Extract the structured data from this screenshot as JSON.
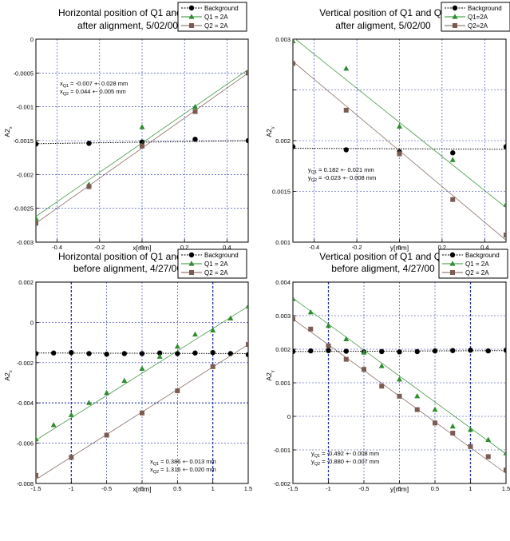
{
  "chart_data": [
    {
      "type": "scatter",
      "title_lines": [
        "Horizontal position of Q1 and Q2",
        "after alignment, 5/02/00"
      ],
      "xlabel": "x[mm]",
      "ylabel_main": "A2",
      "ylabel_sub": "x",
      "xlim": [
        -0.5,
        0.5
      ],
      "ylim": [
        -0.003,
        0
      ],
      "xticks": [
        -0.4,
        -0.2,
        0,
        0.2,
        0.4
      ],
      "yticks": [
        0,
        -0.0005,
        -0.001,
        -0.0015,
        -0.002,
        -0.0025,
        -0.003
      ],
      "xtick_labels": [
        "-0.4",
        "-0.2",
        "0",
        "0.2",
        "0.4"
      ],
      "ytick_labels": [
        "0",
        "-0.0005",
        "-0.001",
        "-0.0015",
        "-0.002",
        "-0.0025",
        "-0.003"
      ],
      "xtick_fracs": [
        0.1,
        0.3,
        0.5,
        0.7,
        0.9
      ],
      "ytick_fracs": [
        0,
        0.1667,
        0.3333,
        0.5,
        0.6667,
        0.8333,
        1
      ],
      "grid": true,
      "legend_position": "top-right",
      "series": [
        {
          "name": "Background",
          "marker": "circle",
          "color": "#000000",
          "x": [
            -0.5,
            -0.25,
            0,
            0.25,
            0.5
          ],
          "y": [
            -0.00155,
            -0.00154,
            -0.00152,
            -0.00148,
            -0.0015
          ],
          "fit": [
            [
              -0.5,
              -0.001545
            ],
            [
              0.5,
              -0.0015
            ]
          ],
          "fit_style": "dotted"
        },
        {
          "name": "Q1 = 2A",
          "marker": "triangle",
          "color": "#2e8b2e",
          "x": [
            -0.5,
            -0.25,
            0,
            0.25,
            0.5
          ],
          "y": [
            -0.00265,
            -0.00215,
            -0.0013,
            -0.001,
            -0.00048
          ],
          "fit": [
            [
              -0.5,
              -0.00262
            ],
            [
              0.5,
              -0.00045
            ]
          ],
          "fit_style": "solid"
        },
        {
          "name": "Q2 = 2A",
          "marker": "square",
          "color": "#7a5c52",
          "x": [
            -0.5,
            -0.25,
            0,
            0.25,
            0.5
          ],
          "y": [
            -0.00272,
            -0.00218,
            -0.00158,
            -0.00107,
            -0.0005
          ],
          "fit": [
            [
              -0.5,
              -0.00272
            ],
            [
              0.5,
              -0.0005
            ]
          ],
          "fit_style": "solid"
        }
      ],
      "annotations": [
        {
          "var": "x",
          "sub": "Q1",
          "text": " = -0.007 +- 0.028 mm"
        },
        {
          "var": "x",
          "sub": "Q2",
          "text": " = 0.044 +- 0.005 mm"
        }
      ]
    },
    {
      "type": "scatter",
      "title_lines": [
        "Vertical position of Q1 and Q2",
        "after aligment, 5/02/00"
      ],
      "xlabel": "y[mm]",
      "ylabel_main": "A2",
      "ylabel_sub": "y",
      "xlim": [
        -0.5,
        0.5
      ],
      "ylim": [
        0.001,
        0.003
      ],
      "xticks": [
        -0.4,
        -0.2,
        0,
        0.2,
        0.4
      ],
      "yticks": [
        0.003,
        0.0025,
        0.002,
        0.0015,
        0.001
      ],
      "xtick_labels": [
        "-0.4",
        "-0.2",
        "0",
        "0.2",
        "0.4"
      ],
      "ytick_labels": [
        "0.003",
        "",
        "0.002",
        "0.0015",
        "0.001"
      ],
      "xtick_fracs": [
        0.1,
        0.3,
        0.5,
        0.7,
        0.9
      ],
      "ytick_fracs": [
        0,
        0.25,
        0.5,
        0.75,
        1
      ],
      "grid": true,
      "legend_position": "top-right",
      "series": [
        {
          "name": "Background",
          "marker": "circle",
          "color": "#000000",
          "x": [
            -0.5,
            -0.25,
            0,
            0.25,
            0.5
          ],
          "y": [
            0.00194,
            0.00191,
            0.00189,
            0.00188,
            0.00194
          ],
          "fit": [
            [
              -0.5,
              0.001925
            ],
            [
              0.5,
              0.001915
            ]
          ],
          "fit_style": "dotted"
        },
        {
          "name": "Q1=2A",
          "marker": "triangle",
          "color": "#2e8b2e",
          "x": [
            -0.5,
            -0.25,
            0,
            0.25,
            0.5
          ],
          "y": [
            0.00298,
            0.00271,
            0.00214,
            0.00181,
            0.00137
          ],
          "fit": [
            [
              -0.5,
              0.00302
            ],
            [
              0.5,
              0.00134
            ]
          ],
          "fit_style": "solid"
        },
        {
          "name": "Q2=2A",
          "marker": "square",
          "color": "#7a5c52",
          "x": [
            -0.5,
            -0.25,
            0,
            0.25,
            0.5
          ],
          "y": [
            0.00276,
            0.0023,
            0.00187,
            0.00142,
            0.00107
          ],
          "fit": [
            [
              -0.5,
              0.00278
            ],
            [
              0.5,
              0.00102
            ]
          ],
          "fit_style": "solid"
        }
      ],
      "annotations": [
        {
          "var": "y",
          "sub": "Q1",
          "text": " = 0.182 +- 0.021 mm"
        },
        {
          "var": "y",
          "sub": "Q2",
          "text": " = -0.023 +- 0.008 mm"
        }
      ]
    },
    {
      "type": "scatter",
      "title_lines": [
        "Horizontal position of Q1 and Q2",
        "before alignment, 4/27/00"
      ],
      "xlabel": "x[mm]",
      "ylabel_main": "A2",
      "ylabel_sub": "x",
      "xlim": [
        -1.5,
        1.5
      ],
      "ylim": [
        -0.008,
        0.002
      ],
      "xticks": [
        -1.5,
        -1,
        -0.5,
        0,
        0.5,
        1,
        1.5
      ],
      "yticks": [
        0.002,
        0,
        -0.002,
        -0.004,
        -0.006,
        -0.008
      ],
      "xtick_labels": [
        "-1.5",
        "-1",
        "-0.5",
        "0",
        "0.5",
        "1",
        "1.5"
      ],
      "ytick_labels": [
        "0.002",
        "0",
        "-0.002",
        "-0.004",
        "-0.006",
        "-0.008"
      ],
      "xtick_fracs": [
        0,
        0.1667,
        0.3333,
        0.5,
        0.6667,
        0.8333,
        1
      ],
      "ytick_fracs": [
        0,
        0.2,
        0.4,
        0.6,
        0.8,
        1
      ],
      "grid": true,
      "legend_position": "top-right",
      "series": [
        {
          "name": "Background",
          "marker": "circle",
          "color": "#000000",
          "x": [
            -1.5,
            -1.25,
            -1,
            -0.75,
            -0.5,
            -0.25,
            0,
            0.25,
            0.5,
            0.75,
            1,
            1.25,
            1.5
          ],
          "y": [
            -0.00155,
            -0.00152,
            -0.0015,
            -0.00155,
            -0.00158,
            -0.00155,
            -0.00155,
            -0.00152,
            -0.00155,
            -0.00152,
            -0.0015,
            -0.00155,
            -0.0016
          ],
          "fit": [
            [
              -1.5,
              -0.00152
            ],
            [
              1.5,
              -0.00155
            ]
          ],
          "fit_style": "dotted"
        },
        {
          "name": "Q1 = 2A",
          "marker": "triangle",
          "color": "#2e8b2e",
          "x": [
            -1.5,
            -1.25,
            -1,
            -0.75,
            -0.5,
            -0.25,
            0,
            0.25,
            0.5,
            0.75,
            1,
            1.25,
            1.5
          ],
          "y": [
            -0.0058,
            -0.0051,
            -0.0046,
            -0.004,
            -0.0035,
            -0.0029,
            -0.0023,
            -0.0017,
            -0.0012,
            -0.0006,
            -0.0004,
            0.0002,
            0.0008
          ],
          "fit": [
            [
              -1.5,
              -0.00585
            ],
            [
              1.5,
              0.0008
            ]
          ],
          "fit_style": "solid"
        },
        {
          "name": "Q2 = 2A",
          "marker": "square",
          "color": "#7a5c52",
          "x": [
            -1.5,
            -1,
            -0.5,
            0,
            0.5,
            1,
            1.5
          ],
          "y": [
            -0.0076,
            -0.0067,
            -0.0056,
            -0.0045,
            -0.0034,
            -0.0022,
            -0.0011
          ],
          "fit": [
            [
              -1.5,
              -0.0078
            ],
            [
              1.5,
              -0.0011
            ]
          ],
          "fit_style": "solid"
        }
      ],
      "annotations": [
        {
          "var": "x",
          "sub": "Q1",
          "text": " = 0.386 +- 0.013 mm"
        },
        {
          "var": "x",
          "sub": "Q2",
          "text": " = 1.316 +- 0.020 mm"
        }
      ]
    },
    {
      "type": "scatter",
      "title_lines": [
        "Vertical position of Q1 and Q2",
        "before aligment, 4/27/00"
      ],
      "xlabel": "y[mm]",
      "ylabel_main": "A2",
      "ylabel_sub": "y",
      "xlim": [
        -1.5,
        1.5
      ],
      "ylim": [
        -0.002,
        0.004
      ],
      "xticks": [
        -1.5,
        -1,
        -0.5,
        0,
        0.5,
        1,
        1.5
      ],
      "yticks": [
        0.004,
        0.003,
        0.002,
        0.001,
        0,
        -0.001,
        -0.002
      ],
      "xtick_labels": [
        "-1.5",
        "-1",
        "-0.5",
        "0",
        "0.5",
        "1",
        "1.5"
      ],
      "ytick_labels": [
        "0.004",
        "0.003",
        "0.002",
        "0.001",
        "0",
        "-0.001",
        "-0.002"
      ],
      "xtick_fracs": [
        0,
        0.1667,
        0.3333,
        0.5,
        0.6667,
        0.8333,
        1
      ],
      "ytick_fracs": [
        0,
        0.1667,
        0.3333,
        0.5,
        0.6667,
        0.8333,
        1
      ],
      "grid": true,
      "legend_position": "top-right",
      "series": [
        {
          "name": "Background",
          "marker": "circle",
          "color": "#000000",
          "x": [
            -1.5,
            -1.25,
            -1,
            -0.75,
            -0.5,
            -0.25,
            0,
            0.25,
            0.5,
            0.75,
            1,
            1.25,
            1.5
          ],
          "y": [
            0.00193,
            0.00195,
            0.00196,
            0.00194,
            0.00192,
            0.00193,
            0.00192,
            0.00193,
            0.00195,
            0.00196,
            0.00197,
            0.00195,
            0.00197
          ],
          "fit": [
            [
              -1.5,
              0.00193
            ],
            [
              1.5,
              0.00196
            ]
          ],
          "fit_style": "dotted"
        },
        {
          "name": "Q1 = 2A",
          "marker": "triangle",
          "color": "#2e8b2e",
          "x": [
            -1.5,
            -1.25,
            -1,
            -0.75,
            -0.5,
            -0.25,
            0,
            0.25,
            0.5,
            0.75,
            1,
            1.25,
            1.5
          ],
          "y": [
            0.0035,
            0.0031,
            0.0027,
            0.0023,
            0.0019,
            0.0015,
            0.0011,
            0.0006,
            0.0002,
            -0.0003,
            -0.0004,
            -0.0007,
            -0.0011
          ],
          "fit": [
            [
              -1.5,
              0.00352
            ],
            [
              1.5,
              -0.00112
            ]
          ],
          "fit_style": "solid"
        },
        {
          "name": "Q2 = 2A",
          "marker": "square",
          "color": "#7a5c52",
          "x": [
            -1.5,
            -1.25,
            -1,
            -0.75,
            -0.5,
            -0.25,
            0,
            0.25,
            0.5,
            0.75,
            1,
            1.25,
            1.5
          ],
          "y": [
            0.0029,
            0.0026,
            0.0021,
            0.0017,
            0.0014,
            0.0009,
            0.0006,
            0.0002,
            -0.0002,
            -0.0005,
            -0.0009,
            -0.0012,
            -0.0016
          ],
          "fit": [
            [
              -1.5,
              0.0029
            ],
            [
              1.5,
              -0.0017
            ]
          ],
          "fit_style": "solid"
        }
      ],
      "annotations": [
        {
          "var": "y",
          "sub": "Q1",
          "text": " = -0.492 +- 0.008 mm"
        },
        {
          "var": "y",
          "sub": "Q2",
          "text": " = -0.880 +- 0.007 mm"
        }
      ]
    }
  ]
}
